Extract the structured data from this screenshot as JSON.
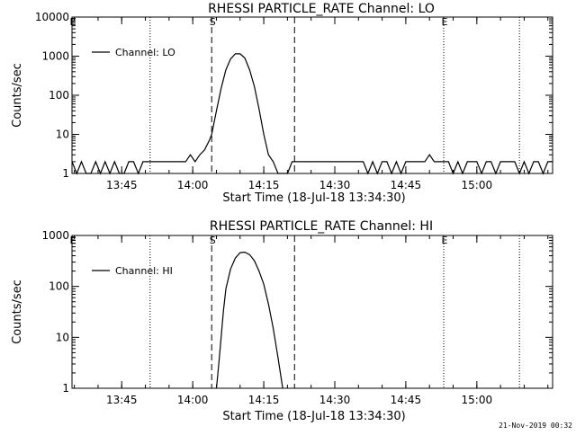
{
  "footer": {
    "timestamp": "21-Nov-2019 00:32"
  },
  "chart_data": [
    {
      "type": "line",
      "title": "RHESSI PARTICLE_RATE Channel: LO",
      "xlabel": "Start Time (18-Jul-18 13:34:30)",
      "ylabel": "Counts/sec",
      "yscale": "log",
      "ylim": [
        1,
        10000
      ],
      "xlim": [
        "13:34:30",
        "15:16:00"
      ],
      "x_tick_labels": [
        "13:45",
        "14:00",
        "14:15",
        "14:30",
        "14:45",
        "15:00"
      ],
      "y_tick_labels": [
        "1",
        "10",
        "100",
        "1000",
        "10000"
      ],
      "grid": false,
      "legend": {
        "position": "top-left",
        "entries": [
          "Channel: LO"
        ]
      },
      "markers": [
        {
          "label": "E",
          "time": "13:34:30",
          "style": "dotted"
        },
        {
          "label": "",
          "time": "13:51:00",
          "style": "dotted"
        },
        {
          "label": "S",
          "time": "14:04:00",
          "style": "dashed"
        },
        {
          "label": "",
          "time": "14:21:30",
          "style": "dashed"
        },
        {
          "label": "E",
          "time": "14:53:00",
          "style": "dotted"
        },
        {
          "label": "",
          "time": "15:09:00",
          "style": "dotted"
        }
      ],
      "series": [
        {
          "name": "Channel: LO",
          "x": [
            "13:34:30",
            "13:35:30",
            "13:36:30",
            "13:37:30",
            "13:38:30",
            "13:39:30",
            "13:40:30",
            "13:41:30",
            "13:42:30",
            "13:43:30",
            "13:44:30",
            "13:45:30",
            "13:46:30",
            "13:47:30",
            "13:48:30",
            "13:49:30",
            "13:50:30",
            "13:51:30",
            "13:52:30",
            "13:53:30",
            "13:54:30",
            "13:55:30",
            "13:56:30",
            "13:57:30",
            "13:58:30",
            "13:59:30",
            "14:00:30",
            "14:01:30",
            "14:02:30",
            "14:03:30",
            "14:04:00",
            "14:05:00",
            "14:06:00",
            "14:07:00",
            "14:08:00",
            "14:09:00",
            "14:10:00",
            "14:11:00",
            "14:12:00",
            "14:13:00",
            "14:14:00",
            "14:15:00",
            "14:16:00",
            "14:17:00",
            "14:18:00",
            "14:19:00",
            "14:20:00",
            "14:21:00",
            "14:22:00",
            "14:23:00",
            "14:24:00",
            "14:25:00",
            "14:26:00",
            "14:27:00",
            "14:28:00",
            "14:29:00",
            "14:30:00",
            "14:32:00",
            "14:34:00",
            "14:36:00",
            "14:37:00",
            "14:38:00",
            "14:39:00",
            "14:40:00",
            "14:41:00",
            "14:42:00",
            "14:43:00",
            "14:44:00",
            "14:45:00",
            "14:46:00",
            "14:47:00",
            "14:48:00",
            "14:49:00",
            "14:50:00",
            "14:51:00",
            "14:52:00",
            "14:53:00",
            "14:54:00",
            "14:55:00",
            "14:56:00",
            "14:57:00",
            "14:58:00",
            "14:59:00",
            "15:00:00",
            "15:01:00",
            "15:02:00",
            "15:03:00",
            "15:04:00",
            "15:05:00",
            "15:06:00",
            "15:07:00",
            "15:08:00",
            "15:09:00",
            "15:10:00",
            "15:11:00",
            "15:12:00",
            "15:13:00",
            "15:14:00",
            "15:15:00",
            "15:16:00"
          ],
          "y": [
            2,
            1,
            2,
            1,
            1,
            2,
            1,
            2,
            1,
            2,
            1,
            1,
            2,
            2,
            1,
            2,
            2,
            2,
            2,
            2,
            2,
            2,
            2,
            2,
            2,
            3,
            2,
            3,
            4,
            7,
            10,
            40,
            150,
            450,
            850,
            1150,
            1150,
            900,
            450,
            170,
            45,
            10,
            3,
            2,
            1,
            1,
            1,
            2,
            2,
            2,
            2,
            2,
            2,
            2,
            2,
            2,
            2,
            2,
            2,
            2,
            1,
            2,
            1,
            2,
            2,
            1,
            2,
            1,
            2,
            2,
            2,
            2,
            2,
            3,
            2,
            2,
            2,
            2,
            1,
            2,
            1,
            2,
            2,
            2,
            1,
            2,
            2,
            1,
            2,
            2,
            2,
            2,
            1,
            2,
            1,
            2,
            2,
            1,
            2,
            2
          ]
        }
      ]
    },
    {
      "type": "line",
      "title": "RHESSI PARTICLE_RATE Channel: HI",
      "xlabel": "Start Time (18-Jul-18 13:34:30)",
      "ylabel": "Counts/sec",
      "yscale": "log",
      "ylim": [
        1,
        1000
      ],
      "xlim": [
        "13:34:30",
        "15:16:00"
      ],
      "x_tick_labels": [
        "13:45",
        "14:00",
        "14:15",
        "14:30",
        "14:45",
        "15:00"
      ],
      "y_tick_labels": [
        "1",
        "10",
        "100",
        "1000"
      ],
      "grid": false,
      "legend": {
        "position": "top-left",
        "entries": [
          "Channel: HI"
        ]
      },
      "markers": [
        {
          "label": "E",
          "time": "13:34:30",
          "style": "dotted"
        },
        {
          "label": "",
          "time": "13:51:00",
          "style": "dotted"
        },
        {
          "label": "S",
          "time": "14:04:00",
          "style": "dashed"
        },
        {
          "label": "",
          "time": "14:21:30",
          "style": "dashed"
        },
        {
          "label": "E",
          "time": "14:53:00",
          "style": "dotted"
        },
        {
          "label": "",
          "time": "15:09:00",
          "style": "dotted"
        }
      ],
      "series": [
        {
          "name": "Channel: HI",
          "x": [
            "14:05:00",
            "14:05:30",
            "14:06:00",
            "14:06:30",
            "14:07:00",
            "14:08:00",
            "14:09:00",
            "14:10:00",
            "14:11:00",
            "14:12:00",
            "14:13:00",
            "14:14:00",
            "14:15:00",
            "14:16:00",
            "14:17:00",
            "14:18:00",
            "14:18:30",
            "14:19:00"
          ],
          "y": [
            1,
            3,
            10,
            35,
            90,
            220,
            360,
            460,
            470,
            420,
            320,
            200,
            110,
            45,
            15,
            4,
            2,
            1
          ]
        }
      ]
    }
  ]
}
